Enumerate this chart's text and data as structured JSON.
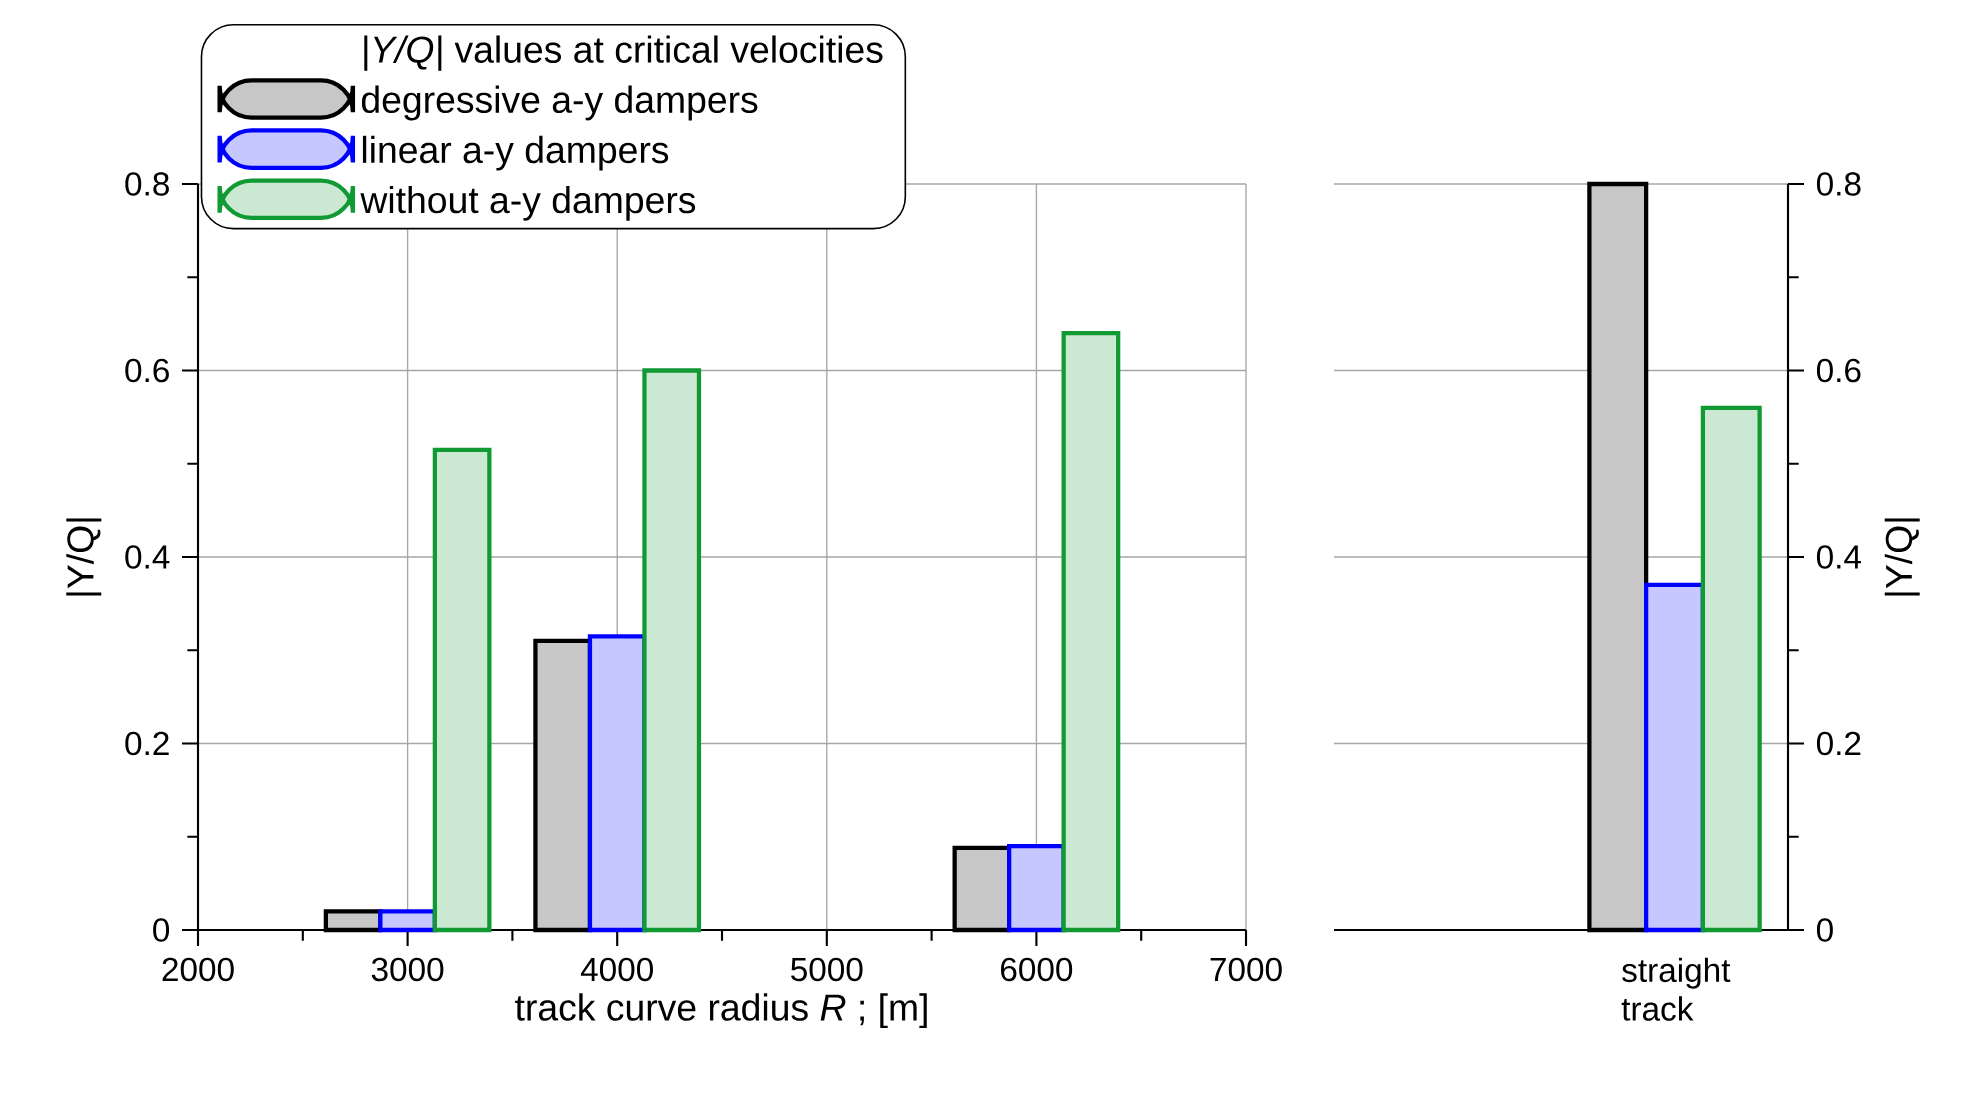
{
  "chart_data": [
    {
      "type": "bar",
      "legend_title": "*|Y/Q|* values at critical velocities",
      "xlabel": "track curve radius *R* ; [m]",
      "ylabel": "|Y/Q|",
      "x": [
        3000,
        4000,
        6000
      ],
      "series": [
        {
          "name": "degressive a-y dampers",
          "color": "#000000",
          "values": [
            0.02,
            0.31,
            0.088
          ]
        },
        {
          "name": "linear a-y dampers",
          "color": "#0000ff",
          "values": [
            0.02,
            0.315,
            0.09
          ]
        },
        {
          "name": "without a-y dampers",
          "color": "#119933",
          "values": [
            0.515,
            0.6,
            0.64
          ]
        }
      ],
      "xlim": [
        2000,
        7000
      ],
      "ylim": [
        0,
        0.8
      ],
      "xticks": [
        2000,
        {
          "value": 2500,
          "label": null
        },
        3000,
        {
          "value": 3500,
          "label": null
        },
        4000,
        {
          "value": 4500,
          "label": null
        },
        5000,
        {
          "value": 5500,
          "label": null
        },
        6000,
        {
          "value": 6500,
          "label": null
        },
        7000
      ],
      "yticks": [
        0,
        {
          "value": 0.1,
          "label": null
        },
        0.2,
        {
          "value": 0.3,
          "label": null
        },
        0.4,
        {
          "value": 0.5,
          "label": null
        },
        0.6,
        {
          "value": 0.7,
          "label": null
        },
        0.8
      ],
      "grid": true,
      "legend": "top left"
    },
    {
      "type": "bar",
      "ylabel": "|Y/Q|",
      "categories": [
        "straight track"
      ],
      "series": [
        {
          "color": "#000000",
          "values": [
            0.8
          ]
        },
        {
          "color": "#0000ff",
          "values": [
            0.37
          ]
        },
        {
          "color": "#119933",
          "values": [
            0.56
          ]
        }
      ],
      "ylim": [
        0,
        0.8
      ],
      "yticks": [
        0,
        {
          "value": 0.1,
          "label": null
        },
        0.2,
        {
          "value": 0.3,
          "label": null
        },
        0.4,
        {
          "value": 0.5,
          "label": null
        },
        0.6,
        {
          "value": 0.7,
          "label": null
        },
        0.8
      ],
      "grid": "y"
    }
  ]
}
